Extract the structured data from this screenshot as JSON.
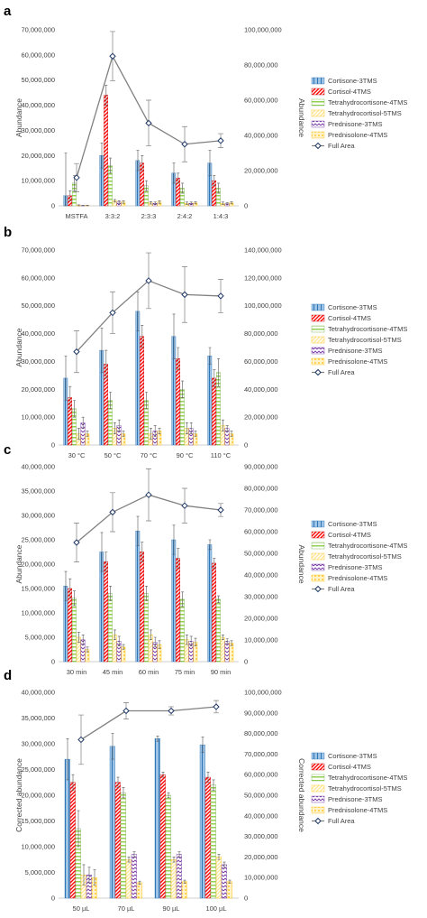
{
  "series_style": [
    {
      "name": "Cortisone-3TMS",
      "fill": "#9dc3e6",
      "stroke": "#2e75b6",
      "pattern": "vstripe"
    },
    {
      "name": "Cortisol-4TMS",
      "fill": "#ff0000",
      "stroke": "#c00000",
      "pattern": "diag"
    },
    {
      "name": "Tetrahydrocortisone-4TMS",
      "fill": "#92d050",
      "stroke": "#70ad47",
      "pattern": "hstripe"
    },
    {
      "name": "Tetrahydrocortisol-5TMS",
      "fill": "#ffe699",
      "stroke": "#ffc000",
      "pattern": "diag"
    },
    {
      "name": "Prednisone-3TMS",
      "fill": "#7030a0",
      "stroke": "#7030a0",
      "pattern": "zigzag"
    },
    {
      "name": "Prednisolone-4TMS",
      "fill": "#ffc000",
      "stroke": "#ffc000",
      "pattern": "dots"
    }
  ],
  "line_style": {
    "name": "Full Area",
    "color": "#808080",
    "marker": "#1f3864"
  },
  "chart_data": [
    {
      "panel": "a",
      "type": "bar",
      "categories": [
        "MSTFA",
        "3:3:2",
        "2:3:3",
        "2:4:2",
        "1:4:3"
      ],
      "ylabel": "Abundance",
      "y2label": "Abundance",
      "ylim": [
        0,
        70000000
      ],
      "yticks": [
        "0",
        "10,000,000",
        "20,000,000",
        "30,000,000",
        "40,000,000",
        "50,000,000",
        "60,000,000",
        "70,000,000"
      ],
      "y2lim": [
        0,
        100000000
      ],
      "y2ticks": [
        "0",
        "20,000,000",
        "40,000,000",
        "60,000,000",
        "80,000,000",
        "100,000,000"
      ],
      "series": [
        {
          "name": "Cortisone-3TMS",
          "values": [
            4000000,
            20000000,
            18000000,
            13000000,
            17000000
          ],
          "errors": [
            17000000,
            5000000,
            4000000,
            4000000,
            5000000
          ]
        },
        {
          "name": "Cortisol-4TMS",
          "values": [
            4000000,
            44000000,
            17000000,
            11000000,
            10000000
          ],
          "errors": [
            2000000,
            4000000,
            3000000,
            2000000,
            2000000
          ]
        },
        {
          "name": "Tetrahydrocortisone-4TMS",
          "values": [
            9000000,
            16000000,
            8000000,
            7000000,
            7000000
          ],
          "errors": [
            3000000,
            3000000,
            2000000,
            2000000,
            2000000
          ]
        },
        {
          "name": "Tetrahydrocortisol-5TMS",
          "values": [
            200000,
            2000000,
            1200000,
            1000000,
            1000000
          ],
          "errors": [
            200000,
            500000,
            500000,
            500000,
            500000
          ]
        },
        {
          "name": "Prednisone-3TMS",
          "values": [
            100000,
            1500000,
            1000000,
            1000000,
            800000
          ],
          "errors": [
            100000,
            500000,
            500000,
            500000,
            400000
          ]
        },
        {
          "name": "Prednisolone-4TMS",
          "values": [
            100000,
            1500000,
            1500000,
            1200000,
            1200000
          ],
          "errors": [
            100000,
            500000,
            500000,
            400000,
            400000
          ]
        }
      ],
      "line": {
        "name": "Full Area",
        "values": [
          16000000,
          85000000,
          47000000,
          35000000,
          37000000
        ],
        "errors": [
          8000000,
          14000000,
          13000000,
          10000000,
          4000000
        ]
      }
    },
    {
      "panel": "b",
      "type": "bar",
      "categories": [
        "30 °C",
        "50 °C",
        "70 °C",
        "90 °C",
        "110 °C"
      ],
      "ylabel": "Abundance",
      "y2label": "",
      "ylim": [
        0,
        70000000
      ],
      "yticks": [
        "0",
        "10,000,000",
        "20,000,000",
        "30,000,000",
        "40,000,000",
        "50,000,000",
        "60,000,000",
        "70,000,000"
      ],
      "y2lim": [
        0,
        140000000
      ],
      "y2ticks": [
        "0",
        "20,000,000",
        "40,000,000",
        "60,000,000",
        "80,000,000",
        "100,000,000",
        "120,000,000",
        "140,000,000"
      ],
      "series": [
        {
          "name": "Cortisone-3TMS",
          "values": [
            24000000,
            34000000,
            48000000,
            39000000,
            32000000
          ],
          "errors": [
            8000000,
            8000000,
            7000000,
            8000000,
            3000000
          ]
        },
        {
          "name": "Cortisol-4TMS",
          "values": [
            17000000,
            29000000,
            39000000,
            31000000,
            24000000
          ],
          "errors": [
            4000000,
            5000000,
            4000000,
            4000000,
            3000000
          ]
        },
        {
          "name": "Tetrahydrocortisone-4TMS",
          "values": [
            13000000,
            16000000,
            16000000,
            20000000,
            26000000
          ],
          "errors": [
            3000000,
            3000000,
            3000000,
            3000000,
            5000000
          ]
        },
        {
          "name": "Tetrahydrocortisol-5TMS",
          "values": [
            4000000,
            6000000,
            4000000,
            6000000,
            7000000
          ],
          "errors": [
            2000000,
            2000000,
            2000000,
            2000000,
            2000000
          ]
        },
        {
          "name": "Prednisone-3TMS",
          "values": [
            8000000,
            7000000,
            5000000,
            6000000,
            6000000
          ],
          "errors": [
            2000000,
            2000000,
            2000000,
            2000000,
            1000000
          ]
        },
        {
          "name": "Prednisolone-4TMS",
          "values": [
            4000000,
            4000000,
            5000000,
            4000000,
            4000000
          ],
          "errors": [
            1000000,
            1000000,
            1000000,
            1000000,
            1000000
          ]
        }
      ],
      "line": {
        "name": "Full Area",
        "values": [
          67000000,
          95000000,
          118000000,
          108000000,
          107000000
        ],
        "errors": [
          15000000,
          15000000,
          20000000,
          20000000,
          12000000
        ]
      }
    },
    {
      "panel": "c",
      "type": "bar",
      "categories": [
        "30 min",
        "45 min",
        "60 min",
        "75 min",
        "90 min"
      ],
      "ylabel": "Abundance",
      "y2label": "Abundance",
      "ylim": [
        0,
        40000000
      ],
      "yticks": [
        "0",
        "5,000,000",
        "10,000,000",
        "15,000,000",
        "20,000,000",
        "25,000,000",
        "30,000,000",
        "35,000,000",
        "40,000,000"
      ],
      "y2lim": [
        0,
        90000000
      ],
      "y2ticks": [
        "0",
        "10,000,000",
        "20,000,000",
        "30,000,000",
        "40,000,000",
        "50,000,000",
        "60,000,000",
        "70,000,000",
        "80,000,000",
        "90,000,000"
      ],
      "series": [
        {
          "name": "Cortisone-3TMS",
          "values": [
            15500000,
            22500000,
            26800000,
            25000000,
            24000000
          ],
          "errors": [
            3000000,
            4000000,
            3000000,
            3000000,
            1000000
          ]
        },
        {
          "name": "Cortisol-4TMS",
          "values": [
            15000000,
            20500000,
            22500000,
            21200000,
            20200000
          ],
          "errors": [
            2000000,
            2000000,
            2000000,
            2000000,
            1000000
          ]
        },
        {
          "name": "Tetrahydrocortisone-4TMS",
          "values": [
            13000000,
            14000000,
            14000000,
            12800000,
            12800000
          ],
          "errors": [
            1500000,
            1500000,
            1500000,
            1500000,
            700000
          ]
        },
        {
          "name": "Tetrahydrocortisol-5TMS",
          "values": [
            5000000,
            5500000,
            5500000,
            4500000,
            5000000
          ],
          "errors": [
            1000000,
            1000000,
            1000000,
            1000000,
            500000
          ]
        },
        {
          "name": "Prednisone-3TMS",
          "values": [
            4500000,
            4200000,
            4000000,
            4200000,
            4200000
          ],
          "errors": [
            1000000,
            1000000,
            1000000,
            1000000,
            500000
          ]
        },
        {
          "name": "Prednisolone-4TMS",
          "values": [
            2500000,
            3000000,
            3500000,
            4000000,
            3800000
          ],
          "errors": [
            500000,
            500000,
            800000,
            800000,
            500000
          ]
        }
      ],
      "line": {
        "name": "Full Area",
        "values": [
          55000000,
          69000000,
          77000000,
          72000000,
          70000000
        ],
        "errors": [
          9000000,
          9000000,
          12000000,
          8000000,
          3000000
        ]
      }
    },
    {
      "panel": "d",
      "type": "bar",
      "categories": [
        "50 µL",
        "70 µL",
        "90 µL",
        "100 µL"
      ],
      "ylabel": "Corrected abundance",
      "y2label": "Corrected abundance",
      "ylim": [
        0,
        40000000
      ],
      "yticks": [
        "0",
        "5,000,000",
        "10,000,000",
        "15,000,000",
        "20,000,000",
        "25,000,000",
        "30,000,000",
        "35,000,000",
        "40,000,000"
      ],
      "y2lim": [
        0,
        100000000
      ],
      "y2ticks": [
        "0",
        "10,000,000",
        "20,000,000",
        "30,000,000",
        "40,000,000",
        "50,000,000",
        "60,000,000",
        "70,000,000",
        "80,000,000",
        "90,000,000",
        "100,000,000"
      ],
      "series": [
        {
          "name": "Cortisone-3TMS",
          "values": [
            27000000,
            29500000,
            31000000,
            29800000
          ],
          "errors": [
            4000000,
            2500000,
            500000,
            1500000
          ]
        },
        {
          "name": "Cortisol-4TMS",
          "values": [
            22500000,
            22500000,
            24000000,
            23500000
          ],
          "errors": [
            1500000,
            1000000,
            500000,
            1000000
          ]
        },
        {
          "name": "Tetrahydrocortisone-4TMS",
          "values": [
            13500000,
            20500000,
            20000000,
            22000000
          ],
          "errors": [
            3500000,
            1000000,
            500000,
            1000000
          ]
        },
        {
          "name": "Tetrahydrocortisol-5TMS",
          "values": [
            4500000,
            7500000,
            7500000,
            8000000
          ],
          "errors": [
            2000000,
            500000,
            500000,
            500000
          ]
        },
        {
          "name": "Prednisone-3TMS",
          "values": [
            4500000,
            8500000,
            8500000,
            6500000
          ],
          "errors": [
            1500000,
            500000,
            500000,
            500000
          ]
        },
        {
          "name": "Prednisolone-4TMS",
          "values": [
            4000000,
            3000000,
            3200000,
            3200000
          ],
          "errors": [
            1500000,
            300000,
            300000,
            300000
          ]
        }
      ],
      "line": {
        "name": "Full Area",
        "values": [
          77000000,
          91000000,
          91000000,
          93000000
        ],
        "errors": [
          12000000,
          4000000,
          2000000,
          3000000
        ]
      }
    }
  ]
}
